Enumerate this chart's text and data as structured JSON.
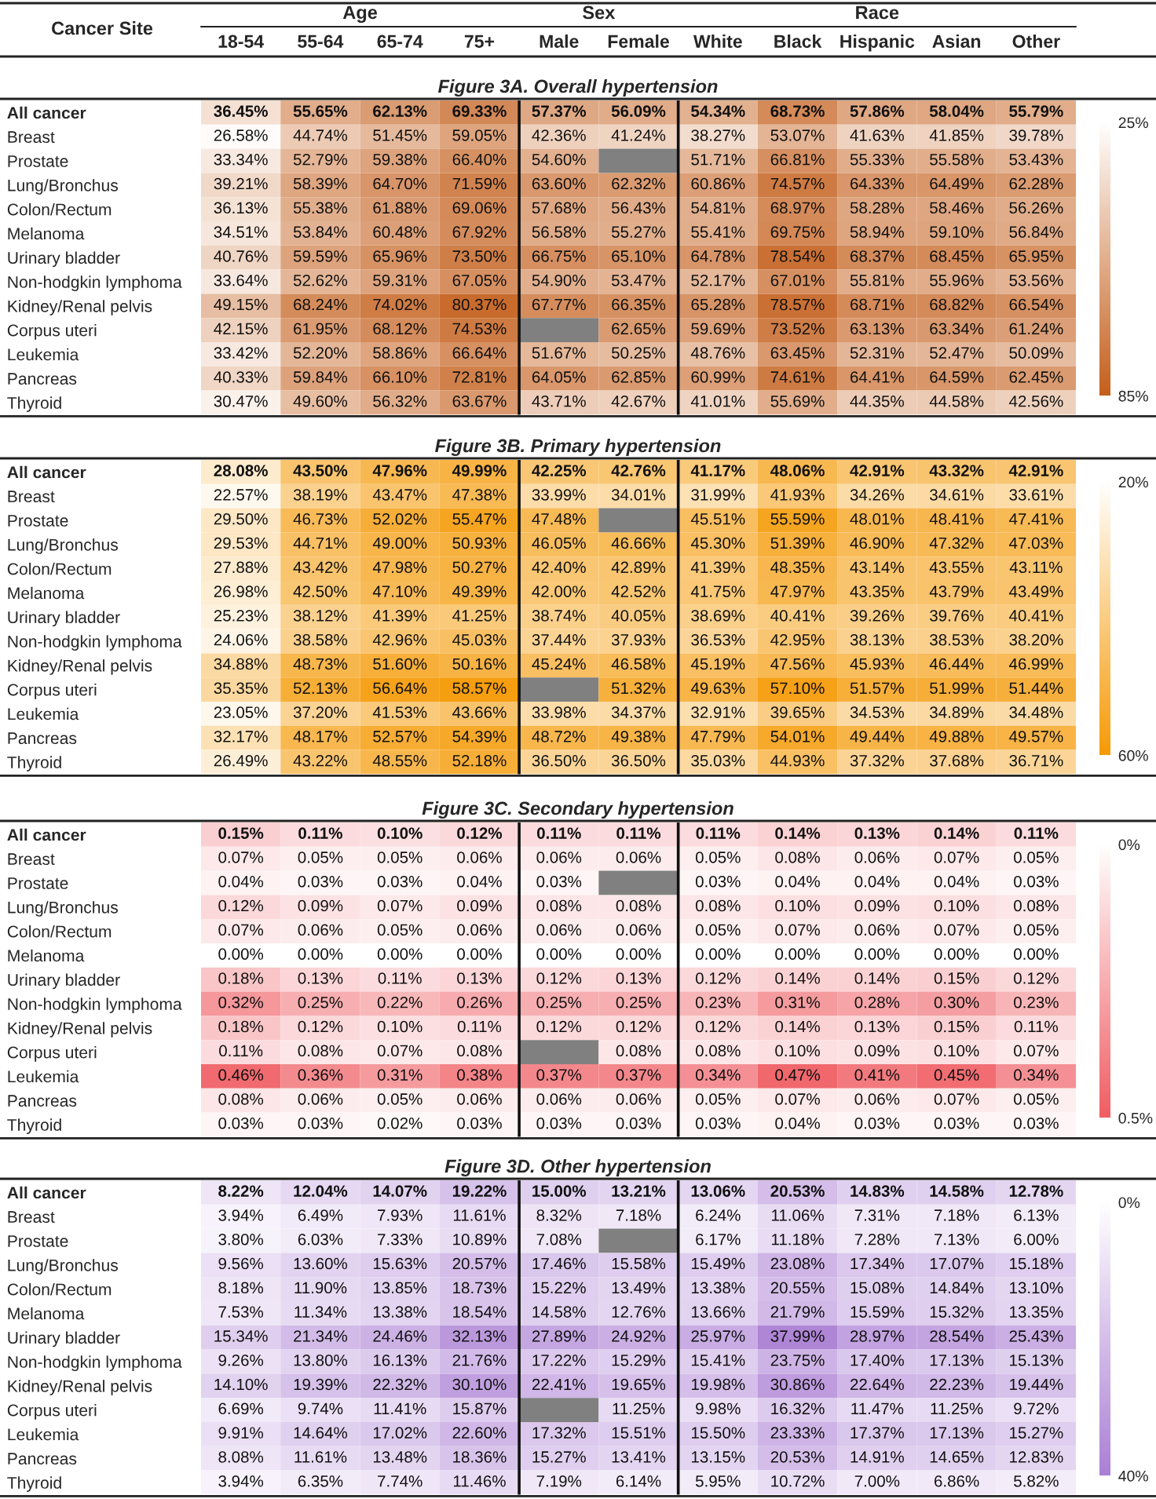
{
  "chart_data": [
    {
      "type": "heatmap",
      "title": "Figure 3A. Overall hypertension",
      "ylabel": "Cancer Site",
      "annotations": [
        "Age",
        "Sex",
        "Race"
      ],
      "categories": [
        "18-54",
        "55-64",
        "65-74",
        "75+",
        "Male",
        "Female",
        "White",
        "Black",
        "Hispanic",
        "Asian",
        "Other"
      ],
      "y_categories": [
        "All cancer",
        "Breast",
        "Prostate",
        "Lung/Bronchus",
        "Colon/Rectum",
        "Melanoma",
        "Urinary bladder",
        "Non-hodgkin lymphoma",
        "Kidney/Renal pelvis",
        "Corpus uteri",
        "Leukemia",
        "Pancreas",
        "Thyroid"
      ],
      "cells": [
        [
          36.45,
          55.65,
          62.13,
          69.33,
          57.37,
          56.09,
          54.34,
          68.73,
          57.86,
          58.04,
          55.79
        ],
        [
          26.58,
          44.74,
          51.45,
          59.05,
          42.36,
          41.24,
          38.27,
          53.07,
          41.63,
          41.85,
          39.78
        ],
        [
          33.34,
          52.79,
          59.38,
          66.4,
          54.6,
          null,
          51.71,
          66.81,
          55.33,
          55.58,
          53.43
        ],
        [
          39.21,
          58.39,
          64.7,
          71.59,
          63.6,
          62.32,
          60.86,
          74.57,
          64.33,
          64.49,
          62.28
        ],
        [
          36.13,
          55.38,
          61.88,
          69.06,
          57.68,
          56.43,
          54.81,
          68.97,
          58.28,
          58.46,
          56.26
        ],
        [
          34.51,
          53.84,
          60.48,
          67.92,
          56.58,
          55.27,
          55.41,
          69.75,
          58.94,
          59.1,
          56.84
        ],
        [
          40.76,
          59.59,
          65.96,
          73.5,
          66.75,
          65.1,
          64.78,
          78.54,
          68.37,
          68.45,
          65.95
        ],
        [
          33.64,
          52.62,
          59.31,
          67.05,
          54.9,
          53.47,
          52.17,
          67.01,
          55.81,
          55.96,
          53.56
        ],
        [
          49.15,
          68.24,
          74.02,
          80.37,
          67.77,
          66.35,
          65.28,
          78.57,
          68.71,
          68.82,
          66.54
        ],
        [
          42.15,
          61.95,
          68.12,
          74.53,
          null,
          62.65,
          59.69,
          73.52,
          63.13,
          63.34,
          61.24
        ],
        [
          33.42,
          52.2,
          58.86,
          66.64,
          51.67,
          50.25,
          48.76,
          63.45,
          52.31,
          52.47,
          50.09
        ],
        [
          40.33,
          59.84,
          66.1,
          72.81,
          64.05,
          62.85,
          60.99,
          74.61,
          64.41,
          64.59,
          62.45
        ],
        [
          30.47,
          49.6,
          56.32,
          63.67,
          43.71,
          42.67,
          41.01,
          55.69,
          44.35,
          44.58,
          42.56
        ]
      ],
      "cell_labels": [
        [
          "36.45%",
          "55.65%",
          "62.13%",
          "69.33%",
          "57.37%",
          "56.09%",
          "54.34%",
          "68.73%",
          "57.86%",
          "58.04%",
          "55.79%"
        ],
        [
          "26.58%",
          "44.74%",
          "51.45%",
          "59.05%",
          "42.36%",
          "41.24%",
          "38.27%",
          "53.07%",
          "41.63%",
          "41.85%",
          "39.78%"
        ],
        [
          "33.34%",
          "52.79%",
          "59.38%",
          "66.40%",
          "54.60%",
          null,
          "51.71%",
          "66.81%",
          "55.33%",
          "55.58%",
          "53.43%"
        ],
        [
          "39.21%",
          "58.39%",
          "64.70%",
          "71.59%",
          "63.60%",
          "62.32%",
          "60.86%",
          "74.57%",
          "64.33%",
          "64.49%",
          "62.28%"
        ],
        [
          "36.13%",
          "55.38%",
          "61.88%",
          "69.06%",
          "57.68%",
          "56.43%",
          "54.81%",
          "68.97%",
          "58.28%",
          "58.46%",
          "56.26%"
        ],
        [
          "34.51%",
          "53.84%",
          "60.48%",
          "67.92%",
          "56.58%",
          "55.27%",
          "55.41%",
          "69.75%",
          "58.94%",
          "59.10%",
          "56.84%"
        ],
        [
          "40.76%",
          "59.59%",
          "65.96%",
          "73.50%",
          "66.75%",
          "65.10%",
          "64.78%",
          "78.54%",
          "68.37%",
          "68.45%",
          "65.95%"
        ],
        [
          "33.64%",
          "52.62%",
          "59.31%",
          "67.05%",
          "54.90%",
          "53.47%",
          "52.17%",
          "67.01%",
          "55.81%",
          "55.96%",
          "53.56%"
        ],
        [
          "49.15%",
          "68.24%",
          "74.02%",
          "80.37%",
          "67.77%",
          "66.35%",
          "65.28%",
          "78.57%",
          "68.71%",
          "68.82%",
          "66.54%"
        ],
        [
          "42.15%",
          "61.95%",
          "68.12%",
          "74.53%",
          null,
          "62.65%",
          "59.69%",
          "73.52%",
          "63.13%",
          "63.34%",
          "61.24%"
        ],
        [
          "33.42%",
          "52.20%",
          "58.86%",
          "66.64%",
          "51.67%",
          "50.25%",
          "48.76%",
          "63.45%",
          "52.31%",
          "52.47%",
          "50.09%"
        ],
        [
          "40.33%",
          "59.84%",
          "66.10%",
          "72.81%",
          "64.05%",
          "62.85%",
          "60.99%",
          "74.61%",
          "64.41%",
          "64.59%",
          "62.45%"
        ],
        [
          "30.47%",
          "49.60%",
          "56.32%",
          "63.67%",
          "43.71%",
          "42.67%",
          "41.01%",
          "55.69%",
          "44.35%",
          "44.58%",
          "42.56%"
        ]
      ],
      "clim": [
        25,
        85
      ],
      "cticks": [
        {
          "value": 25,
          "label": "25%"
        },
        {
          "value": 85,
          "label": "85%"
        }
      ]
    },
    {
      "type": "heatmap",
      "title": "Figure 3B. Primary hypertension",
      "tick_labels": "y",
      "categories": [
        null,
        null,
        null,
        null,
        null,
        null,
        null,
        null,
        null,
        null,
        null
      ],
      "y_categories": [
        "All cancer",
        "Breast",
        "Prostate",
        "Lung/Bronchus",
        "Colon/Rectum",
        "Melanoma",
        "Urinary bladder",
        "Non-hodgkin lymphoma",
        "Kidney/Renal pelvis",
        "Corpus uteri",
        "Leukemia",
        "Pancreas",
        "Thyroid"
      ],
      "cells": [
        [
          28.08,
          43.5,
          47.96,
          49.99,
          42.25,
          42.76,
          41.17,
          48.06,
          42.91,
          43.32,
          42.91
        ],
        [
          22.57,
          38.19,
          43.47,
          47.38,
          33.99,
          34.01,
          31.99,
          41.93,
          34.26,
          34.61,
          33.61
        ],
        [
          29.5,
          46.73,
          52.02,
          55.47,
          47.48,
          null,
          45.51,
          55.59,
          48.01,
          48.41,
          47.41
        ],
        [
          29.53,
          44.71,
          49.0,
          50.93,
          46.05,
          46.66,
          45.3,
          51.39,
          46.9,
          47.32,
          47.03
        ],
        [
          27.88,
          43.42,
          47.98,
          50.27,
          42.4,
          42.89,
          41.39,
          48.35,
          43.14,
          43.55,
          43.11
        ],
        [
          26.98,
          42.5,
          47.1,
          49.39,
          42.0,
          42.52,
          41.75,
          47.97,
          43.35,
          43.79,
          43.49
        ],
        [
          25.23,
          38.12,
          41.39,
          41.25,
          38.74,
          40.05,
          38.69,
          40.41,
          39.26,
          39.76,
          40.41
        ],
        [
          24.06,
          38.58,
          42.96,
          45.03,
          37.44,
          37.93,
          36.53,
          42.95,
          38.13,
          38.53,
          38.2
        ],
        [
          34.88,
          48.73,
          51.6,
          50.16,
          45.24,
          46.58,
          45.19,
          47.56,
          45.93,
          46.44,
          46.99
        ],
        [
          35.35,
          52.13,
          56.64,
          58.57,
          null,
          51.32,
          49.63,
          57.1,
          51.57,
          51.99,
          51.44
        ],
        [
          23.05,
          37.2,
          41.53,
          43.66,
          33.98,
          34.37,
          32.91,
          39.65,
          34.53,
          34.89,
          34.48
        ],
        [
          32.17,
          48.17,
          52.57,
          54.39,
          48.72,
          49.38,
          47.79,
          54.01,
          49.44,
          49.88,
          49.57
        ],
        [
          26.49,
          43.22,
          48.55,
          52.18,
          36.5,
          36.5,
          35.03,
          44.93,
          37.32,
          37.68,
          36.71
        ]
      ],
      "cell_labels": [
        [
          "28.08%",
          "43.50%",
          "47.96%",
          "49.99%",
          "42.25%",
          "42.76%",
          "41.17%",
          "48.06%",
          "42.91%",
          "43.32%",
          "42.91%"
        ],
        [
          "22.57%",
          "38.19%",
          "43.47%",
          "47.38%",
          "33.99%",
          "34.01%",
          "31.99%",
          "41.93%",
          "34.26%",
          "34.61%",
          "33.61%"
        ],
        [
          "29.50%",
          "46.73%",
          "52.02%",
          "55.47%",
          "47.48%",
          null,
          "45.51%",
          "55.59%",
          "48.01%",
          "48.41%",
          "47.41%"
        ],
        [
          "29.53%",
          "44.71%",
          "49.00%",
          "50.93%",
          "46.05%",
          "46.66%",
          "45.30%",
          "51.39%",
          "46.90%",
          "47.32%",
          "47.03%"
        ],
        [
          "27.88%",
          "43.42%",
          "47.98%",
          "50.27%",
          "42.40%",
          "42.89%",
          "41.39%",
          "48.35%",
          "43.14%",
          "43.55%",
          "43.11%"
        ],
        [
          "26.98%",
          "42.50%",
          "47.10%",
          "49.39%",
          "42.00%",
          "42.52%",
          "41.75%",
          "47.97%",
          "43.35%",
          "43.79%",
          "43.49%"
        ],
        [
          "25.23%",
          "38.12%",
          "41.39%",
          "41.25%",
          "38.74%",
          "40.05%",
          "38.69%",
          "40.41%",
          "39.26%",
          "39.76%",
          "40.41%"
        ],
        [
          "24.06%",
          "38.58%",
          "42.96%",
          "45.03%",
          "37.44%",
          "37.93%",
          "36.53%",
          "42.95%",
          "38.13%",
          "38.53%",
          "38.20%"
        ],
        [
          "34.88%",
          "48.73%",
          "51.60%",
          "50.16%",
          "45.24%",
          "46.58%",
          "45.19%",
          "47.56%",
          "45.93%",
          "46.44%",
          "46.99%"
        ],
        [
          "35.35%",
          "52.13%",
          "56.64%",
          "58.57%",
          null,
          "51.32%",
          "49.63%",
          "57.10%",
          "51.57%",
          "51.99%",
          "51.44%"
        ],
        [
          "23.05%",
          "37.20%",
          "41.53%",
          "43.66%",
          "33.98%",
          "34.37%",
          "32.91%",
          "39.65%",
          "34.53%",
          "34.89%",
          "34.48%"
        ],
        [
          "32.17%",
          "48.17%",
          "52.57%",
          "54.39%",
          "48.72%",
          "49.38%",
          "47.79%",
          "54.01%",
          "49.44%",
          "49.88%",
          "49.57%"
        ],
        [
          "26.49%",
          "43.22%",
          "48.55%",
          "52.18%",
          "36.50%",
          "36.50%",
          "35.03%",
          "44.93%",
          "37.32%",
          "37.68%",
          "36.71%"
        ]
      ],
      "clim": [
        20,
        60
      ],
      "cticks": [
        {
          "value": 20,
          "label": "20%"
        },
        {
          "value": 60,
          "label": "60%"
        }
      ]
    },
    {
      "type": "heatmap",
      "title": "Figure 3C. Secondary hypertension",
      "tick_labels": "y",
      "categories": [
        null,
        null,
        null,
        null,
        null,
        null,
        null,
        null,
        null,
        null,
        null
      ],
      "y_categories": [
        "All cancer",
        "Breast",
        "Prostate",
        "Lung/Bronchus",
        "Colon/Rectum",
        "Melanoma",
        "Urinary bladder",
        "Non-hodgkin lymphoma",
        "Kidney/Renal pelvis",
        "Corpus uteri",
        "Leukemia",
        "Pancreas",
        "Thyroid"
      ],
      "cells": [
        [
          0.15,
          0.11,
          0.1,
          0.12,
          0.11,
          0.11,
          0.11,
          0.14,
          0.13,
          0.14,
          0.11
        ],
        [
          0.07,
          0.05,
          0.05,
          0.06,
          0.06,
          0.06,
          0.05,
          0.08,
          0.06,
          0.07,
          0.05
        ],
        [
          0.04,
          0.03,
          0.03,
          0.04,
          0.03,
          null,
          0.03,
          0.04,
          0.04,
          0.04,
          0.03
        ],
        [
          0.12,
          0.09,
          0.07,
          0.09,
          0.08,
          0.08,
          0.08,
          0.1,
          0.09,
          0.1,
          0.08
        ],
        [
          0.07,
          0.06,
          0.05,
          0.06,
          0.06,
          0.06,
          0.05,
          0.07,
          0.06,
          0.07,
          0.05
        ],
        [
          0.0,
          0.0,
          0.0,
          0.0,
          0.0,
          0.0,
          0.0,
          0.0,
          0.0,
          0.0,
          0.0
        ],
        [
          0.18,
          0.13,
          0.11,
          0.13,
          0.12,
          0.13,
          0.12,
          0.14,
          0.14,
          0.15,
          0.12
        ],
        [
          0.32,
          0.25,
          0.22,
          0.26,
          0.25,
          0.25,
          0.23,
          0.31,
          0.28,
          0.3,
          0.23
        ],
        [
          0.18,
          0.12,
          0.1,
          0.11,
          0.12,
          0.12,
          0.12,
          0.14,
          0.13,
          0.15,
          0.11
        ],
        [
          0.11,
          0.08,
          0.07,
          0.08,
          null,
          0.08,
          0.08,
          0.1,
          0.09,
          0.1,
          0.07
        ],
        [
          0.46,
          0.36,
          0.31,
          0.38,
          0.37,
          0.37,
          0.34,
          0.47,
          0.41,
          0.45,
          0.34
        ],
        [
          0.08,
          0.06,
          0.05,
          0.06,
          0.06,
          0.06,
          0.05,
          0.07,
          0.06,
          0.07,
          0.05
        ],
        [
          0.03,
          0.03,
          0.02,
          0.03,
          0.03,
          0.03,
          0.03,
          0.04,
          0.03,
          0.03,
          0.03
        ]
      ],
      "cell_labels": [
        [
          "0.15%",
          "0.11%",
          "0.10%",
          "0.12%",
          "0.11%",
          "0.11%",
          "0.11%",
          "0.14%",
          "0.13%",
          "0.14%",
          "0.11%"
        ],
        [
          "0.07%",
          "0.05%",
          "0.05%",
          "0.06%",
          "0.06%",
          "0.06%",
          "0.05%",
          "0.08%",
          "0.06%",
          "0.07%",
          "0.05%"
        ],
        [
          "0.04%",
          "0.03%",
          "0.03%",
          "0.04%",
          "0.03%",
          null,
          "0.03%",
          "0.04%",
          "0.04%",
          "0.04%",
          "0.03%"
        ],
        [
          "0.12%",
          "0.09%",
          "0.07%",
          "0.09%",
          "0.08%",
          "0.08%",
          "0.08%",
          "0.10%",
          "0.09%",
          "0.10%",
          "0.08%"
        ],
        [
          "0.07%",
          "0.06%",
          "0.05%",
          "0.06%",
          "0.06%",
          "0.06%",
          "0.05%",
          "0.07%",
          "0.06%",
          "0.07%",
          "0.05%"
        ],
        [
          "0.00%",
          "0.00%",
          "0.00%",
          "0.00%",
          "0.00%",
          "0.00%",
          "0.00%",
          "0.00%",
          "0.00%",
          "0.00%",
          "0.00%"
        ],
        [
          "0.18%",
          "0.13%",
          "0.11%",
          "0.13%",
          "0.12%",
          "0.13%",
          "0.12%",
          "0.14%",
          "0.14%",
          "0.15%",
          "0.12%"
        ],
        [
          "0.32%",
          "0.25%",
          "0.22%",
          "0.26%",
          "0.25%",
          "0.25%",
          "0.23%",
          "0.31%",
          "0.28%",
          "0.30%",
          "0.23%"
        ],
        [
          "0.18%",
          "0.12%",
          "0.10%",
          "0.11%",
          "0.12%",
          "0.12%",
          "0.12%",
          "0.14%",
          "0.13%",
          "0.15%",
          "0.11%"
        ],
        [
          "0.11%",
          "0.08%",
          "0.07%",
          "0.08%",
          null,
          "0.08%",
          "0.08%",
          "0.10%",
          "0.09%",
          "0.10%",
          "0.07%"
        ],
        [
          "0.46%",
          "0.36%",
          "0.31%",
          "0.38%",
          "0.37%",
          "0.37%",
          "0.34%",
          "0.47%",
          "0.41%",
          "0.45%",
          "0.34%"
        ],
        [
          "0.08%",
          "0.06%",
          "0.05%",
          "0.06%",
          "0.06%",
          "0.06%",
          "0.05%",
          "0.07%",
          "0.06%",
          "0.07%",
          "0.05%"
        ],
        [
          "0.03%",
          "0.03%",
          "0.02%",
          "0.03%",
          "0.03%",
          "0.03%",
          "0.03%",
          "0.04%",
          "0.03%",
          "0.03%",
          "0.03%"
        ]
      ],
      "clim": [
        0,
        0.5
      ],
      "cticks": [
        {
          "value": 0,
          "label": "0%"
        },
        {
          "value": 0.5,
          "label": "0.5%"
        }
      ]
    },
    {
      "type": "heatmap",
      "title": "Figure 3D. Other hypertension",
      "tick_labels": "y",
      "categories": [
        null,
        null,
        null,
        null,
        null,
        null,
        null,
        null,
        null,
        null,
        null
      ],
      "y_categories": [
        "All cancer",
        "Breast",
        "Prostate",
        "Lung/Bronchus",
        "Colon/Rectum",
        "Melanoma",
        "Urinary bladder",
        "Non-hodgkin lymphoma",
        "Kidney/Renal pelvis",
        "Corpus uteri",
        "Leukemia",
        "Pancreas",
        "Thyroid"
      ],
      "cells": [
        [
          8.22,
          12.04,
          14.07,
          19.22,
          15.0,
          13.21,
          13.06,
          20.53,
          14.83,
          14.58,
          12.78
        ],
        [
          3.94,
          6.49,
          7.93,
          11.61,
          8.32,
          7.18,
          6.24,
          11.06,
          7.31,
          7.18,
          6.13
        ],
        [
          3.8,
          6.03,
          7.33,
          10.89,
          7.08,
          null,
          6.17,
          11.18,
          7.28,
          7.13,
          6.0
        ],
        [
          9.56,
          13.6,
          15.63,
          20.57,
          17.46,
          15.58,
          15.49,
          23.08,
          17.34,
          17.07,
          15.18
        ],
        [
          8.18,
          11.9,
          13.85,
          18.73,
          15.22,
          13.49,
          13.38,
          20.55,
          15.08,
          14.84,
          13.1
        ],
        [
          7.53,
          11.34,
          13.38,
          18.54,
          14.58,
          12.76,
          13.66,
          21.79,
          15.59,
          15.32,
          13.35
        ],
        [
          15.34,
          21.34,
          24.46,
          32.13,
          27.89,
          24.92,
          25.97,
          37.99,
          28.97,
          28.54,
          25.43
        ],
        [
          9.26,
          13.8,
          16.13,
          21.76,
          17.22,
          15.29,
          15.41,
          23.75,
          17.4,
          17.13,
          15.13
        ],
        [
          14.1,
          19.39,
          22.32,
          30.1,
          22.41,
          19.65,
          19.98,
          30.86,
          22.64,
          22.23,
          19.44
        ],
        [
          6.69,
          9.74,
          11.41,
          15.87,
          null,
          11.25,
          9.98,
          16.32,
          11.47,
          11.25,
          9.72
        ],
        [
          9.91,
          14.64,
          17.02,
          22.6,
          17.32,
          15.51,
          15.5,
          23.33,
          17.37,
          17.13,
          15.27
        ],
        [
          8.08,
          11.61,
          13.48,
          18.36,
          15.27,
          13.41,
          13.15,
          20.53,
          14.91,
          14.65,
          12.83
        ],
        [
          3.94,
          6.35,
          7.74,
          11.46,
          7.19,
          6.14,
          5.95,
          10.72,
          7.0,
          6.86,
          5.82
        ]
      ],
      "cell_labels": [
        [
          "8.22%",
          "12.04%",
          "14.07%",
          "19.22%",
          "15.00%",
          "13.21%",
          "13.06%",
          "20.53%",
          "14.83%",
          "14.58%",
          "12.78%"
        ],
        [
          "3.94%",
          "6.49%",
          "7.93%",
          "11.61%",
          "8.32%",
          "7.18%",
          "6.24%",
          "11.06%",
          "7.31%",
          "7.18%",
          "6.13%"
        ],
        [
          "3.80%",
          "6.03%",
          "7.33%",
          "10.89%",
          "7.08%",
          null,
          "6.17%",
          "11.18%",
          "7.28%",
          "7.13%",
          "6.00%"
        ],
        [
          "9.56%",
          "13.60%",
          "15.63%",
          "20.57%",
          "17.46%",
          "15.58%",
          "15.49%",
          "23.08%",
          "17.34%",
          "17.07%",
          "15.18%"
        ],
        [
          "8.18%",
          "11.90%",
          "13.85%",
          "18.73%",
          "15.22%",
          "13.49%",
          "13.38%",
          "20.55%",
          "15.08%",
          "14.84%",
          "13.10%"
        ],
        [
          "7.53%",
          "11.34%",
          "13.38%",
          "18.54%",
          "14.58%",
          "12.76%",
          "13.66%",
          "21.79%",
          "15.59%",
          "15.32%",
          "13.35%"
        ],
        [
          "15.34%",
          "21.34%",
          "24.46%",
          "32.13%",
          "27.89%",
          "24.92%",
          "25.97%",
          "37.99%",
          "28.97%",
          "28.54%",
          "25.43%"
        ],
        [
          "9.26%",
          "13.80%",
          "16.13%",
          "21.76%",
          "17.22%",
          "15.29%",
          "15.41%",
          "23.75%",
          "17.40%",
          "17.13%",
          "15.13%"
        ],
        [
          "14.10%",
          "19.39%",
          "22.32%",
          "30.10%",
          "22.41%",
          "19.65%",
          "19.98%",
          "30.86%",
          "22.64%",
          "22.23%",
          "19.44%"
        ],
        [
          "6.69%",
          "9.74%",
          "11.41%",
          "15.87%",
          null,
          "11.25%",
          "9.98%",
          "16.32%",
          "11.47%",
          "11.25%",
          "9.72%"
        ],
        [
          "9.91%",
          "14.64%",
          "17.02%",
          "22.60%",
          "17.32%",
          "15.51%",
          "15.50%",
          "23.33%",
          "17.37%",
          "17.13%",
          "15.27%"
        ],
        [
          "8.08%",
          "11.61%",
          "13.48%",
          "18.36%",
          "15.27%",
          "13.41%",
          "13.15%",
          "20.53%",
          "14.91%",
          "14.65%",
          "12.83%"
        ],
        [
          "3.94%",
          "6.35%",
          "7.74%",
          "11.46%",
          "7.19%",
          "6.14%",
          "5.95%",
          "10.72%",
          "7.00%",
          "6.86%",
          "5.82%"
        ]
      ],
      "clim": [
        0,
        40
      ],
      "cticks": [
        {
          "value": 0,
          "label": "0%"
        },
        {
          "value": 40,
          "label": "40%"
        }
      ]
    }
  ]
}
